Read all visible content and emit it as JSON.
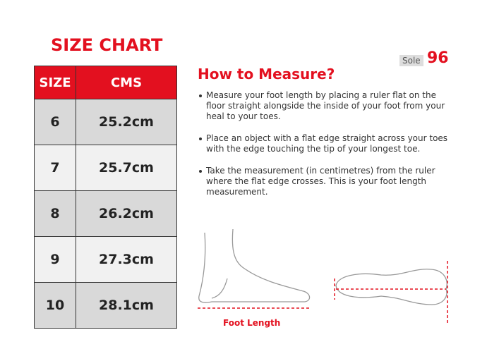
{
  "header": {
    "title": "SIZE CHART"
  },
  "table": {
    "headers": [
      "SIZE",
      "CMS"
    ],
    "rows": [
      [
        "6",
        "25.2cm"
      ],
      [
        "7",
        "25.7cm"
      ],
      [
        "8",
        "26.2cm"
      ],
      [
        "9",
        "27.3cm"
      ],
      [
        "10",
        "28.1cm"
      ]
    ]
  },
  "brand": {
    "label": "Sole",
    "number": "96"
  },
  "instructions": {
    "title": "How to Measure?",
    "bullets": [
      "Measure your foot length by placing a ruler flat on the floor straight alongside the inside of your foot from your heal to your toes.",
      "Place an object with a flat edge straight across your toes with the edge touching the tip of your longest toe.",
      "Take the measurement (in centimetres) from the ruler where the flat edge crosses. This is your foot length measurement."
    ]
  },
  "figure": {
    "caption": "Foot Length"
  }
}
